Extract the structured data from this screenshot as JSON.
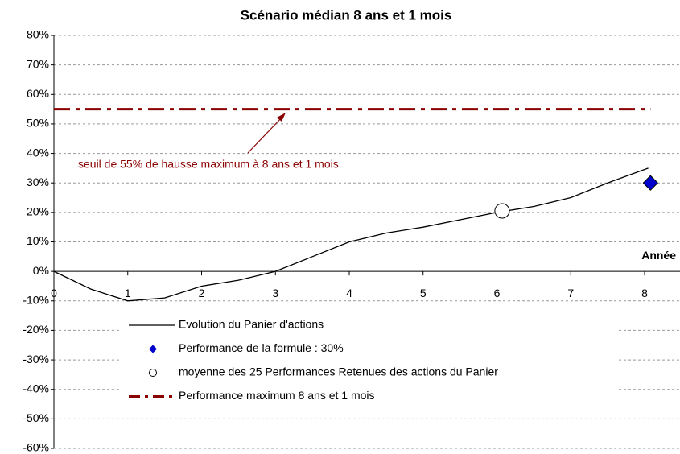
{
  "chart_data": {
    "type": "line",
    "title": "Scénario médian 8 ans et 1 mois",
    "xlabel": "Année",
    "xlim": [
      0,
      8.5
    ],
    "xticks": [
      0,
      1,
      2,
      3,
      4,
      5,
      6,
      7,
      8
    ],
    "ylim": [
      -60,
      80
    ],
    "yticks": [
      {
        "value": -60,
        "label": "-60%"
      },
      {
        "value": -50,
        "label": "-50%"
      },
      {
        "value": -40,
        "label": "-40%"
      },
      {
        "value": -30,
        "label": "-30%"
      },
      {
        "value": -20,
        "label": "-20%"
      },
      {
        "value": -10,
        "label": "-10%"
      },
      {
        "value": 0,
        "label": "0%"
      },
      {
        "value": 10,
        "label": "10%"
      },
      {
        "value": 20,
        "label": "20%"
      },
      {
        "value": 30,
        "label": "30%"
      },
      {
        "value": 40,
        "label": "40%"
      },
      {
        "value": 50,
        "label": "50%"
      },
      {
        "value": 60,
        "label": "60%"
      },
      {
        "value": 70,
        "label": "70%"
      },
      {
        "value": 80,
        "label": "80%"
      }
    ],
    "grid": true,
    "legend": "lower left",
    "annotation": "seuil de 55% de hausse maximum à 8 ans et 1 mois",
    "series": [
      {
        "name": "Evolution du Panier d'actions",
        "color": "#000000",
        "style": "line",
        "x": [
          0,
          0.5,
          1,
          1.5,
          2,
          2.5,
          3,
          3.5,
          4,
          4.5,
          5,
          5.5,
          6,
          6.5,
          7,
          7.5,
          8.05
        ],
        "values": [
          0,
          -6,
          -10,
          -9,
          -5,
          -3,
          0,
          5,
          10,
          13,
          15,
          17.5,
          20,
          22,
          25,
          30,
          35
        ]
      },
      {
        "name": "Performance de la formule : 30%",
        "color": "#0000cc",
        "style": "diamond",
        "x": [
          8.08
        ],
        "values": [
          30
        ]
      },
      {
        "name": "moyenne des 25 Performances Retenues des actions du Panier",
        "color": "#000000",
        "style": "circle",
        "x": [
          6.07
        ],
        "values": [
          20.5
        ]
      },
      {
        "name": "Performance maximum 8 ans et 1 mois",
        "color": "#8b0000",
        "style": "dashdot",
        "x": [
          0,
          8.08
        ],
        "values": [
          55,
          55
        ]
      }
    ]
  }
}
